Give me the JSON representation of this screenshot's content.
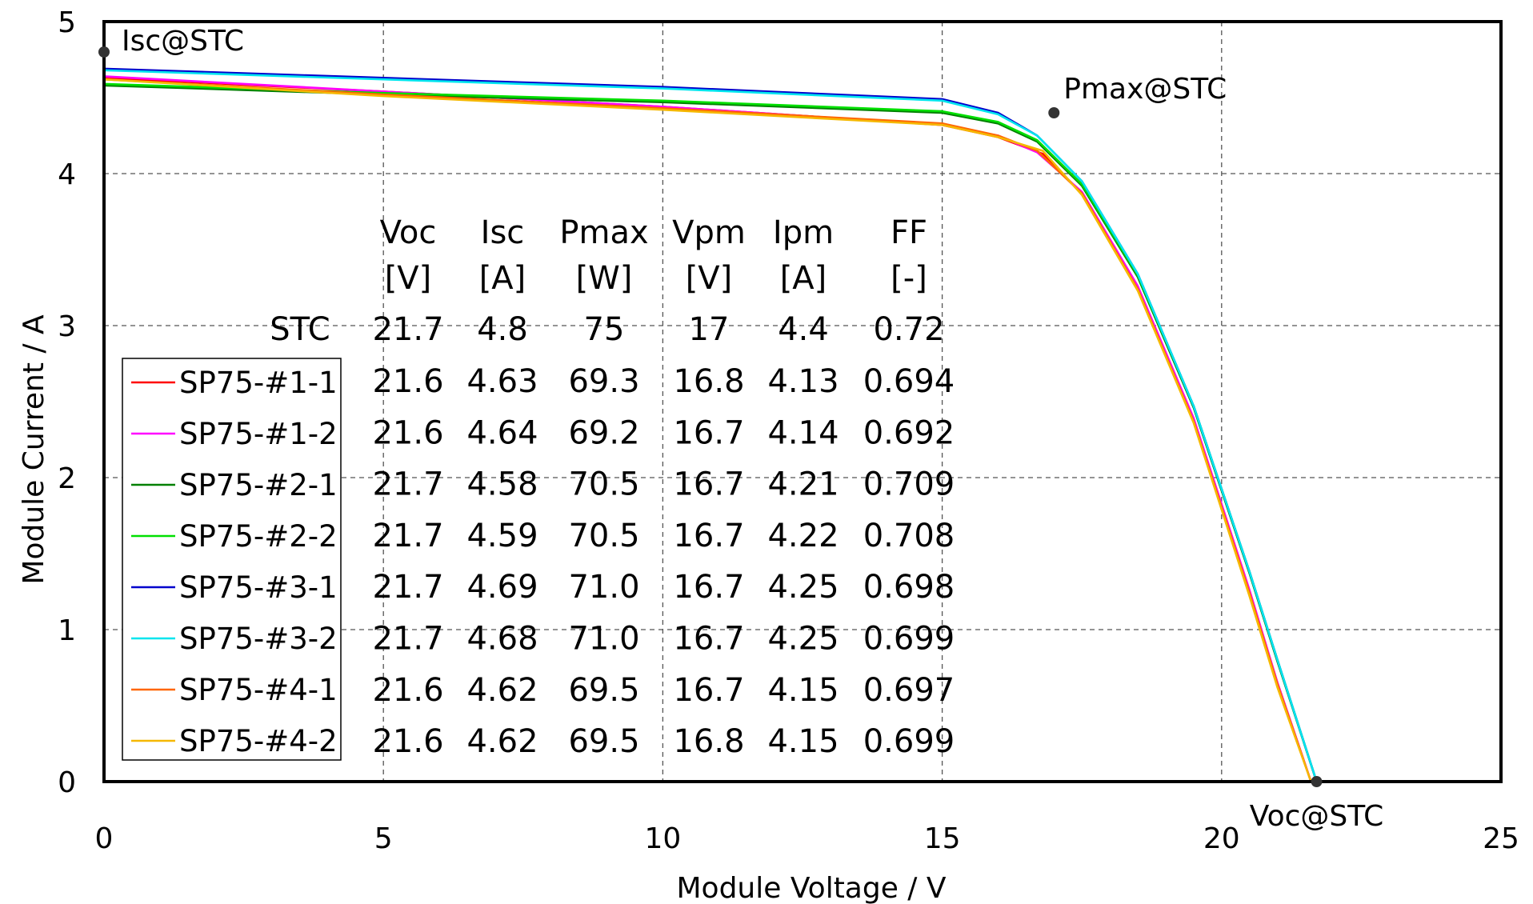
{
  "chart_data": {
    "type": "line",
    "xlabel": "Module Voltage / V",
    "ylabel": "Module Current / A",
    "xlim": [
      0,
      25
    ],
    "ylim": [
      0,
      5
    ],
    "x_ticks": [
      0,
      5,
      10,
      15,
      20,
      25
    ],
    "y_ticks": [
      0,
      1,
      2,
      3,
      4,
      5
    ],
    "grid": true,
    "legend_position": "left",
    "series": [
      {
        "name": "SP75-#1-1",
        "color": "#ff0000",
        "x": [
          0,
          5,
          10,
          15,
          16,
          16.8,
          17.5,
          18.5,
          19.5,
          20.5,
          21.0,
          21.6
        ],
        "y": [
          4.63,
          4.54,
          4.44,
          4.32,
          4.24,
          4.13,
          3.87,
          3.25,
          2.38,
          1.25,
          0.65,
          0.0
        ]
      },
      {
        "name": "SP75-#1-2",
        "color": "#ff00ff",
        "x": [
          0,
          5,
          10,
          15,
          16,
          16.7,
          17.5,
          18.5,
          19.5,
          20.5,
          21.0,
          21.6
        ],
        "y": [
          4.64,
          4.54,
          4.44,
          4.32,
          4.25,
          4.14,
          3.88,
          3.26,
          2.39,
          1.26,
          0.65,
          0.0
        ]
      },
      {
        "name": "SP75-#2-1",
        "color": "#008000",
        "x": [
          0,
          5,
          10,
          15,
          16,
          16.7,
          17.5,
          18.5,
          19.5,
          20.5,
          21.0,
          21.7
        ],
        "y": [
          4.58,
          4.52,
          4.47,
          4.4,
          4.33,
          4.21,
          3.92,
          3.32,
          2.46,
          1.37,
          0.79,
          0.0
        ]
      },
      {
        "name": "SP75-#2-2",
        "color": "#00e000",
        "x": [
          0,
          5,
          10,
          15,
          16,
          16.7,
          17.5,
          18.5,
          19.5,
          20.5,
          21.0,
          21.7
        ],
        "y": [
          4.59,
          4.53,
          4.48,
          4.41,
          4.34,
          4.22,
          3.93,
          3.33,
          2.47,
          1.38,
          0.8,
          0.0
        ]
      },
      {
        "name": "SP75-#3-1",
        "color": "#0000cc",
        "x": [
          0,
          5,
          10,
          15,
          16,
          16.7,
          17.5,
          18.5,
          19.5,
          20.5,
          21.0,
          21.7
        ],
        "y": [
          4.69,
          4.63,
          4.57,
          4.49,
          4.4,
          4.25,
          3.95,
          3.34,
          2.47,
          1.38,
          0.8,
          0.0
        ]
      },
      {
        "name": "SP75-#3-2",
        "color": "#00e5ee",
        "x": [
          0,
          5,
          10,
          15,
          16,
          16.7,
          17.5,
          18.5,
          19.5,
          20.5,
          21.0,
          21.7
        ],
        "y": [
          4.68,
          4.62,
          4.56,
          4.48,
          4.39,
          4.25,
          3.95,
          3.34,
          2.47,
          1.38,
          0.8,
          0.0
        ]
      },
      {
        "name": "SP75-#4-1",
        "color": "#ff6600",
        "x": [
          0,
          5,
          10,
          15,
          16,
          16.7,
          17.5,
          18.5,
          19.5,
          20.5,
          21.0,
          21.6
        ],
        "y": [
          4.62,
          4.52,
          4.43,
          4.33,
          4.25,
          4.15,
          3.87,
          3.24,
          2.37,
          1.24,
          0.64,
          0.0
        ]
      },
      {
        "name": "SP75-#4-2",
        "color": "#f5b800",
        "x": [
          0,
          5,
          10,
          15,
          16,
          16.8,
          17.5,
          18.5,
          19.5,
          20.5,
          21.0,
          21.6
        ],
        "y": [
          4.62,
          4.51,
          4.42,
          4.32,
          4.24,
          4.15,
          3.86,
          3.23,
          2.36,
          1.22,
          0.62,
          0.0
        ]
      }
    ],
    "reference_points": [
      {
        "label": "Isc@STC",
        "x": 0,
        "y": 4.8
      },
      {
        "label": "Pmax@STC",
        "x": 17,
        "y": 4.4
      },
      {
        "label": "Voc@STC",
        "x": 21.7,
        "y": 0
      }
    ],
    "table": {
      "header_top": [
        "Voc",
        "Isc",
        "Pmax",
        "Vpm",
        "Ipm",
        "FF"
      ],
      "header_units": [
        "[V]",
        "[A]",
        "[W]",
        "[V]",
        "[A]",
        "[-]"
      ],
      "stc_label": "STC",
      "stc_row": [
        "21.7",
        "4.8",
        "75",
        "17",
        "4.4",
        "0.72"
      ],
      "rows": [
        [
          "21.6",
          "4.63",
          "69.3",
          "16.8",
          "4.13",
          "0.694"
        ],
        [
          "21.6",
          "4.64",
          "69.2",
          "16.7",
          "4.14",
          "0.692"
        ],
        [
          "21.7",
          "4.58",
          "70.5",
          "16.7",
          "4.21",
          "0.709"
        ],
        [
          "21.7",
          "4.59",
          "70.5",
          "16.7",
          "4.22",
          "0.708"
        ],
        [
          "21.7",
          "4.69",
          "71.0",
          "16.7",
          "4.25",
          "0.698"
        ],
        [
          "21.7",
          "4.68",
          "71.0",
          "16.7",
          "4.25",
          "0.699"
        ],
        [
          "21.6",
          "4.62",
          "69.5",
          "16.7",
          "4.15",
          "0.697"
        ],
        [
          "21.6",
          "4.62",
          "69.5",
          "16.8",
          "4.15",
          "0.699"
        ]
      ]
    }
  }
}
